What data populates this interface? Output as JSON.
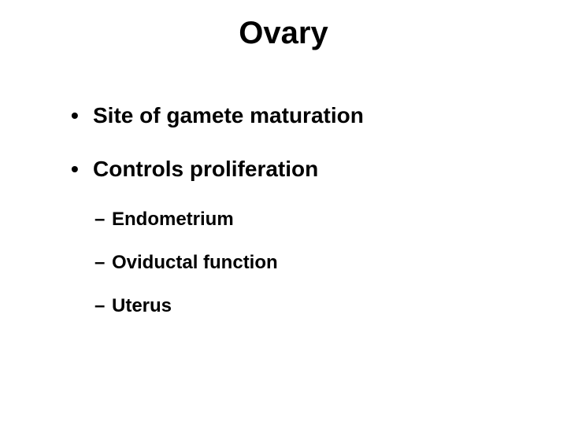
{
  "slide": {
    "title": "Ovary",
    "title_fontsize": 40,
    "title_color": "#000000",
    "background_color": "#ffffff",
    "bullets_lvl1": [
      "Site of gamete maturation",
      "Controls proliferation"
    ],
    "lvl1_fontsize": 28,
    "bullets_lvl2": [
      "Endometrium",
      "Oviductal function",
      "Uterus"
    ],
    "lvl2_fontsize": 24,
    "text_color": "#000000",
    "font_family": "Arial"
  }
}
